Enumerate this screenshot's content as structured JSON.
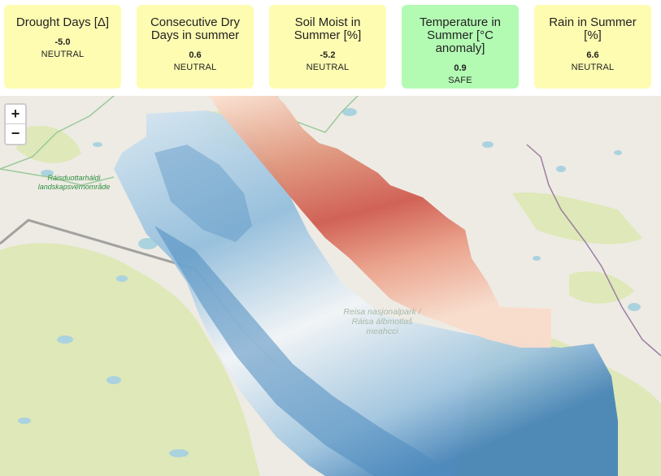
{
  "cards": [
    {
      "title": "Drought Days [Δ]",
      "value": "-5.0",
      "status": "NEUTRAL"
    },
    {
      "title": "Consecutive Dry Days in summer",
      "value": "0.6",
      "status": "NEUTRAL"
    },
    {
      "title": "Soil Moist in Summer [%]",
      "value": "-5.2",
      "status": "NEUTRAL"
    },
    {
      "title": "Temperature in Summer [°C anomaly]",
      "value": "0.9",
      "status": "SAFE"
    },
    {
      "title": "Rain in Summer [%]",
      "value": "6.6",
      "status": "NEUTRAL"
    }
  ],
  "status_colors": {
    "NEUTRAL": "#fefcb1",
    "SAFE": "#b3fbb3"
  },
  "map": {
    "zoom_in": "+",
    "zoom_out": "−",
    "labels": {
      "area_line1": "Ráisduottarháldi",
      "area_line2": "landskapsvernområde",
      "park_line1": "Reisa nasjonalpark /",
      "park_line2": "Ráisa álbmotlaš",
      "park_line3": "meahcci"
    },
    "colors": {
      "warm": "#b2182b",
      "cold": "#2166ac",
      "land": "#eeebe4",
      "forest": "#dfe8b8",
      "water": "#aad3df"
    }
  }
}
